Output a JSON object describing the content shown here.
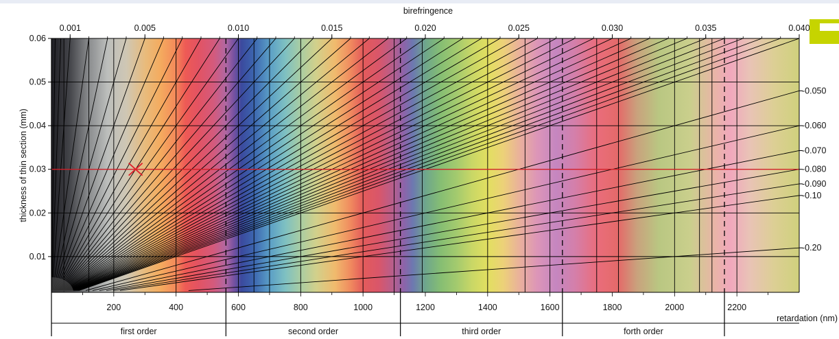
{
  "chart_data": {
    "type": "line",
    "title": "",
    "top_axis": {
      "label": "birefringence",
      "ticks": [
        {
          "value": 0.001,
          "label": "0.001"
        },
        {
          "value": 0.005,
          "label": "0.005"
        },
        {
          "value": 0.01,
          "label": "0.010"
        },
        {
          "value": 0.015,
          "label": "0.015"
        },
        {
          "value": 0.02,
          "label": "0.020"
        },
        {
          "value": 0.025,
          "label": "0.025"
        },
        {
          "value": 0.03,
          "label": "0.030"
        },
        {
          "value": 0.035,
          "label": "0.035"
        },
        {
          "value": 0.04,
          "label": "0.040"
        }
      ]
    },
    "y_axis": {
      "label": "thickness of thin section (mm)",
      "ylim": [
        0.0018,
        0.06
      ],
      "ticks": [
        {
          "value": 0.01,
          "label": "0.01"
        },
        {
          "value": 0.02,
          "label": "0.02"
        },
        {
          "value": 0.03,
          "label": "0.03"
        },
        {
          "value": 0.04,
          "label": "0.04"
        },
        {
          "value": 0.05,
          "label": "0.05"
        },
        {
          "value": 0.06,
          "label": "0.06"
        }
      ]
    },
    "x_axis": {
      "label": "retardation (nm)",
      "xlim": [
        0,
        2400
      ],
      "ticks": [
        {
          "value": 200,
          "label": "200"
        },
        {
          "value": 400,
          "label": "400"
        },
        {
          "value": 600,
          "label": "600"
        },
        {
          "value": 800,
          "label": "800"
        },
        {
          "value": 1000,
          "label": "1000"
        },
        {
          "value": 1200,
          "label": "1200"
        },
        {
          "value": 1400,
          "label": "1400"
        },
        {
          "value": 1600,
          "label": "1600"
        },
        {
          "value": 1800,
          "label": "1800"
        },
        {
          "value": 2000,
          "label": "2000"
        },
        {
          "value": 2200,
          "label": "2200"
        }
      ]
    },
    "right_labels": [
      {
        "value": 0.05,
        "label": "-0.050"
      },
      {
        "value": 0.06,
        "label": "-0.060"
      },
      {
        "value": 0.07,
        "label": "-0.070"
      },
      {
        "value": 0.08,
        "label": "-0.080"
      },
      {
        "value": 0.09,
        "label": "-0.090"
      },
      {
        "value": 0.1,
        "label": "-0.10"
      },
      {
        "value": 0.2,
        "label": "-0.20"
      }
    ],
    "birefringence_lines": [
      0.001,
      0.002,
      0.003,
      0.004,
      0.005,
      0.006,
      0.007,
      0.008,
      0.009,
      0.01,
      0.011,
      0.012,
      0.013,
      0.014,
      0.015,
      0.016,
      0.017,
      0.018,
      0.019,
      0.02,
      0.021,
      0.022,
      0.023,
      0.024,
      0.025,
      0.026,
      0.027,
      0.028,
      0.029,
      0.03,
      0.031,
      0.032,
      0.033,
      0.034,
      0.035,
      0.036,
      0.037,
      0.038,
      0.039,
      0.04,
      0.05,
      0.06,
      0.07,
      0.08,
      0.09,
      0.1,
      0.2
    ],
    "extra_birefringence_lines": [
      0.0002,
      0.0005
    ],
    "color_boundaries_nm": [
      40,
      120,
      200,
      400,
      600,
      650,
      700,
      800,
      1000,
      1100,
      1190,
      1400,
      1520,
      1600,
      1750,
      1820,
      2000,
      2080,
      2120,
      2200,
      2400
    ],
    "order_boundaries_nm": [
      560,
      1120,
      1640,
      2160
    ],
    "orders": [
      {
        "label": "first order",
        "from": 0,
        "to": 560
      },
      {
        "label": "second order",
        "from": 560,
        "to": 1120
      },
      {
        "label": "third order",
        "from": 1120,
        "to": 1640
      },
      {
        "label": "forth order",
        "from": 1640,
        "to": 2160
      }
    ],
    "marker": {
      "retardation": 270,
      "thickness": 0.03,
      "birefringence": 0.009
    },
    "horizontal_line": 0.03,
    "spectrum": [
      {
        "nm": 0,
        "color": "#1f1f24"
      },
      {
        "nm": 60,
        "color": "#45464b"
      },
      {
        "nm": 120,
        "color": "#8a8c8e"
      },
      {
        "nm": 180,
        "color": "#bcbebc"
      },
      {
        "nm": 240,
        "color": "#cfc7b4"
      },
      {
        "nm": 300,
        "color": "#e8bb7c"
      },
      {
        "nm": 350,
        "color": "#f4ab5f"
      },
      {
        "nm": 395,
        "color": "#f48c5a"
      },
      {
        "nm": 430,
        "color": "#ee5a55"
      },
      {
        "nm": 470,
        "color": "#e35362"
      },
      {
        "nm": 520,
        "color": "#d45a7c"
      },
      {
        "nm": 560,
        "color": "#b067a2"
      },
      {
        "nm": 585,
        "color": "#7752a1"
      },
      {
        "nm": 610,
        "color": "#3b4a9e"
      },
      {
        "nm": 650,
        "color": "#3c66b0"
      },
      {
        "nm": 700,
        "color": "#5a9ec6"
      },
      {
        "nm": 750,
        "color": "#7ec0c2"
      },
      {
        "nm": 800,
        "color": "#a9cda2"
      },
      {
        "nm": 850,
        "color": "#d2d08b"
      },
      {
        "nm": 910,
        "color": "#f0ba6d"
      },
      {
        "nm": 960,
        "color": "#f08a5f"
      },
      {
        "nm": 1000,
        "color": "#e45b5b"
      },
      {
        "nm": 1050,
        "color": "#d9566a"
      },
      {
        "nm": 1100,
        "color": "#b45f8f"
      },
      {
        "nm": 1130,
        "color": "#8e63a9"
      },
      {
        "nm": 1160,
        "color": "#6d78b0"
      },
      {
        "nm": 1200,
        "color": "#6ea68c"
      },
      {
        "nm": 1250,
        "color": "#86be73"
      },
      {
        "nm": 1300,
        "color": "#a3ca6e"
      },
      {
        "nm": 1350,
        "color": "#c9d766"
      },
      {
        "nm": 1400,
        "color": "#e2df60"
      },
      {
        "nm": 1450,
        "color": "#ecd178"
      },
      {
        "nm": 1500,
        "color": "#eab29a"
      },
      {
        "nm": 1560,
        "color": "#dc95b8"
      },
      {
        "nm": 1620,
        "color": "#c586c0"
      },
      {
        "nm": 1680,
        "color": "#d47faa"
      },
      {
        "nm": 1750,
        "color": "#ea6d7c"
      },
      {
        "nm": 1820,
        "color": "#e46a69"
      },
      {
        "nm": 1880,
        "color": "#c9a27d"
      },
      {
        "nm": 1950,
        "color": "#b9c782"
      },
      {
        "nm": 2050,
        "color": "#cacf8c"
      },
      {
        "nm": 2130,
        "color": "#eab4a8"
      },
      {
        "nm": 2180,
        "color": "#f0a8bd"
      },
      {
        "nm": 2240,
        "color": "#e9c3b6"
      },
      {
        "nm": 2320,
        "color": "#dccf94"
      },
      {
        "nm": 2400,
        "color": "#cfd07d"
      }
    ],
    "colors": {
      "marker": "#e0202a",
      "grid": "#000000",
      "accent": "#c6d400"
    }
  }
}
